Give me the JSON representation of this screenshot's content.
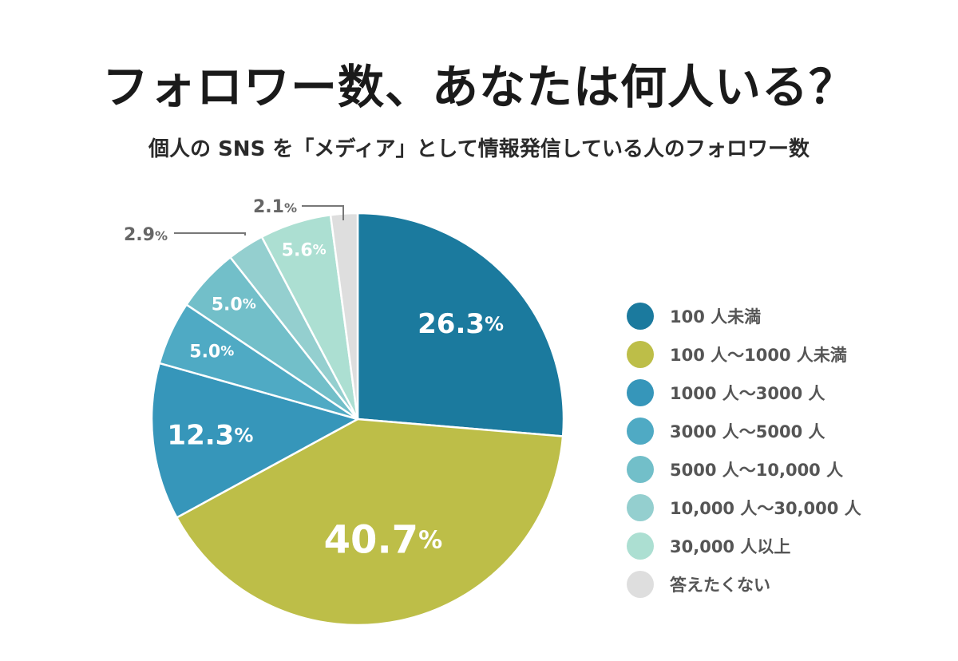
{
  "title": "フォロワー数、あなたは何人いる？",
  "subtitle": "個人の SNS を「メディア」として情報発信している人のフォロワー数",
  "chart_data": {
    "type": "pie",
    "title": "フォロワー数、あなたは何人いる？",
    "subtitle": "個人の SNS を「メディア」として情報発信している人のフォロワー数",
    "unit": "%",
    "legend_position": "right",
    "slices": [
      {
        "label": "100 人未満",
        "value": 26.3,
        "color": "#1b7a9e",
        "value_text": "26.3"
      },
      {
        "label": "100 人〜1000 人未満",
        "value": 40.7,
        "color": "#bdbe48",
        "value_text": "40.7"
      },
      {
        "label": "1000 人〜3000 人",
        "value": 12.3,
        "color": "#3696ba",
        "value_text": "12.3"
      },
      {
        "label": "3000 人〜5000 人",
        "value": 5.0,
        "color": "#4faac4",
        "value_text": "5.0"
      },
      {
        "label": "5000 人〜10,000 人",
        "value": 5.0,
        "color": "#72bfc9",
        "value_text": "5.0"
      },
      {
        "label": "10,000 人〜30,000 人",
        "value": 2.9,
        "color": "#94cfcf",
        "value_text": "2.9"
      },
      {
        "label": "30,000 人以上",
        "value": 5.6,
        "color": "#acdfd2",
        "value_text": "5.6"
      },
      {
        "label": "答えたくない",
        "value": 2.1,
        "color": "#dedede",
        "value_text": "2.1"
      }
    ]
  }
}
